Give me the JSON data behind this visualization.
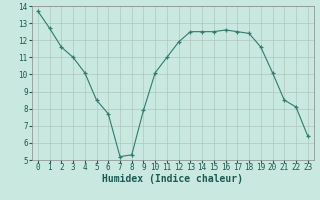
{
  "x": [
    0,
    1,
    2,
    3,
    4,
    5,
    6,
    7,
    8,
    9,
    10,
    11,
    12,
    13,
    14,
    15,
    16,
    17,
    18,
    19,
    20,
    21,
    22,
    23
  ],
  "y": [
    13.7,
    12.7,
    11.6,
    11.0,
    10.1,
    8.5,
    7.7,
    5.2,
    5.3,
    7.9,
    10.1,
    11.0,
    11.9,
    12.5,
    12.5,
    12.5,
    12.6,
    12.5,
    12.4,
    11.6,
    10.1,
    8.5,
    8.1,
    6.4
  ],
  "line_color": "#2e7d6e",
  "marker": "+",
  "marker_size": 3,
  "bg_color": "#c8e8e0",
  "grid_color": "#b0c8c0",
  "plot_bg": "#c8e8e0",
  "xlabel": "Humidex (Indice chaleur)",
  "xlim": [
    -0.5,
    23.5
  ],
  "ylim": [
    5,
    14
  ],
  "yticks": [
    5,
    6,
    7,
    8,
    9,
    10,
    11,
    12,
    13,
    14
  ],
  "xticks": [
    0,
    1,
    2,
    3,
    4,
    5,
    6,
    7,
    8,
    9,
    10,
    11,
    12,
    13,
    14,
    15,
    16,
    17,
    18,
    19,
    20,
    21,
    22,
    23
  ],
  "axis_fontsize": 6.5,
  "tick_fontsize": 5.5,
  "xlabel_fontsize": 7,
  "label_color": "#1a5a52"
}
